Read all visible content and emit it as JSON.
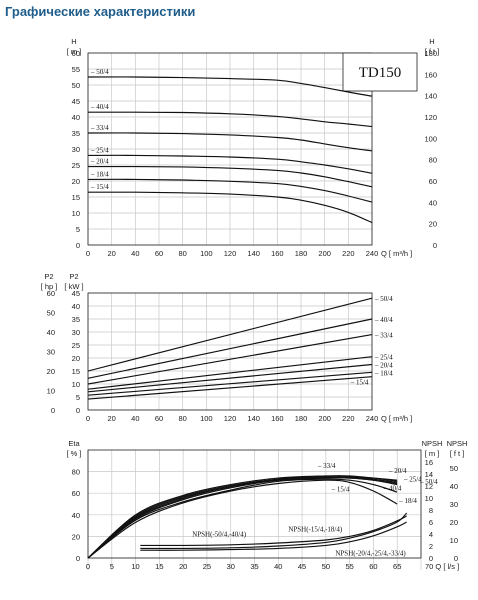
{
  "page_title": "Графические характеристики",
  "model": "TD150",
  "chart_data": [
    {
      "id": "head",
      "type": "line",
      "title": "",
      "xlabel": "Q [ m³/h ]",
      "ylabel_left": "H [ m ]",
      "ylabel_right": "H [ f t ]",
      "xlim": [
        0,
        240
      ],
      "ylim": [
        0,
        60
      ],
      "ylim_right": [
        0,
        180
      ],
      "x_ticks": [
        "0",
        "20",
        "40",
        "60",
        "80",
        "100",
        "120",
        "140",
        "160",
        "180",
        "200",
        "220",
        "240"
      ],
      "y_ticks": [
        "0",
        "5",
        "10",
        "15",
        "20",
        "25",
        "30",
        "35",
        "40",
        "45",
        "50",
        "55",
        "60"
      ],
      "y_ticks_right": [
        "0",
        "20",
        "40",
        "60",
        "80",
        "100",
        "120",
        "140",
        "160",
        "180"
      ],
      "grid": true,
      "series": [
        {
          "name": "50/4",
          "x": [
            0,
            40,
            80,
            120,
            160,
            180,
            200,
            220,
            240
          ],
          "y": [
            52.5,
            52.5,
            52.3,
            52,
            51.5,
            50.5,
            49.2,
            47.8,
            46.5
          ]
        },
        {
          "name": "40/4",
          "x": [
            0,
            40,
            80,
            120,
            160,
            180,
            200,
            220,
            240
          ],
          "y": [
            41.5,
            41.5,
            41.4,
            41,
            40.2,
            39.4,
            38.5,
            37.8,
            37
          ]
        },
        {
          "name": "33/4",
          "x": [
            0,
            40,
            80,
            120,
            160,
            180,
            200,
            220,
            240
          ],
          "y": [
            35,
            35,
            34.8,
            34.4,
            33.6,
            32.8,
            31.6,
            30.4,
            29.4
          ]
        },
        {
          "name": "25/4",
          "x": [
            0,
            40,
            80,
            120,
            160,
            180,
            200,
            220,
            240
          ],
          "y": [
            28,
            28,
            27.8,
            27.5,
            26.8,
            26,
            25,
            23.8,
            22.4
          ]
        },
        {
          "name": "20/4",
          "x": [
            0,
            40,
            80,
            120,
            160,
            180,
            200,
            220,
            240
          ],
          "y": [
            24.5,
            24.5,
            24.4,
            24,
            23.3,
            22.5,
            21.3,
            19.8,
            18.2
          ]
        },
        {
          "name": "18/4",
          "x": [
            0,
            40,
            80,
            120,
            160,
            180,
            200,
            220,
            240
          ],
          "y": [
            20.5,
            20.5,
            20.3,
            19.9,
            19.2,
            18.3,
            17,
            15.3,
            13.4
          ]
        },
        {
          "name": "15/4",
          "x": [
            0,
            40,
            80,
            120,
            160,
            180,
            200,
            220,
            240
          ],
          "y": [
            16.5,
            16.5,
            16.3,
            15.9,
            15,
            14,
            12.4,
            10.2,
            7
          ]
        }
      ]
    },
    {
      "id": "power",
      "type": "line",
      "title": "",
      "xlabel": "Q [ m³/h ]",
      "ylabel_left": "P2 [ kW ]",
      "ylabel_left2": "P2 [ hp ]",
      "xlim": [
        0,
        240
      ],
      "ylim": [
        0,
        45
      ],
      "ylim_hp": [
        0,
        60
      ],
      "x_ticks": [
        "0",
        "20",
        "40",
        "60",
        "80",
        "100",
        "120",
        "140",
        "160",
        "180",
        "200",
        "220",
        "240"
      ],
      "y_ticks": [
        "0",
        "5",
        "10",
        "15",
        "20",
        "25",
        "30",
        "35",
        "40",
        "45"
      ],
      "y_ticks_hp": [
        "0",
        "10",
        "20",
        "30",
        "40",
        "50",
        "60"
      ],
      "grid": true,
      "series": [
        {
          "name": "50/4",
          "x": [
            0,
            240
          ],
          "y": [
            15,
            43
          ]
        },
        {
          "name": "40/4",
          "x": [
            0,
            240
          ],
          "y": [
            12.2,
            35
          ]
        },
        {
          "name": "33/4",
          "x": [
            0,
            240
          ],
          "y": [
            10,
            29
          ]
        },
        {
          "name": "25/4",
          "x": [
            0,
            240
          ],
          "y": [
            8,
            20.5
          ]
        },
        {
          "name": "20/4",
          "x": [
            0,
            240
          ],
          "y": [
            7,
            17.5
          ]
        },
        {
          "name": "18/4",
          "x": [
            0,
            240
          ],
          "y": [
            5.7,
            14.5
          ]
        },
        {
          "name": "15/4",
          "x": [
            0,
            240
          ],
          "y": [
            4.2,
            12.8
          ]
        }
      ]
    },
    {
      "id": "efficiency",
      "type": "line",
      "title": "",
      "xlabel": "Q [ l/s ]",
      "ylabel_left": "Eta [ % ]",
      "ylabel_right": "NPSH [ m ]",
      "ylabel_right2": "NPSH [ f t ]",
      "xlim": [
        0,
        70
      ],
      "ylim": [
        0,
        100
      ],
      "ylim_npsh_m": [
        0,
        18
      ],
      "ylim_npsh_ft": [
        0,
        60
      ],
      "x_ticks": [
        "0",
        "5",
        "10",
        "15",
        "20",
        "25",
        "30",
        "35",
        "40",
        "45",
        "50",
        "55",
        "60",
        "65",
        "70"
      ],
      "y_ticks": [
        "0",
        "20",
        "40",
        "60",
        "80"
      ],
      "y_ticks_npsh_m": [
        "0",
        "2",
        "4",
        "6",
        "8",
        "10",
        "12",
        "14",
        "16"
      ],
      "y_ticks_npsh_ft": [
        "0",
        "10",
        "20",
        "30",
        "40",
        "50"
      ],
      "grid": true,
      "eta_series": [
        {
          "name": "15/4",
          "x": [
            0,
            10,
            20,
            30,
            40,
            50,
            55,
            60,
            65
          ],
          "y": [
            0,
            33,
            51,
            62,
            69,
            72,
            70,
            62,
            50
          ]
        },
        {
          "name": "18/4",
          "x": [
            0,
            10,
            20,
            30,
            40,
            50,
            55,
            60,
            65
          ],
          "y": [
            0,
            35,
            52,
            63,
            71,
            73,
            72,
            68,
            61
          ]
        },
        {
          "name": "20/4",
          "x": [
            0,
            10,
            20,
            30,
            40,
            50,
            55,
            60,
            65
          ],
          "y": [
            0,
            36,
            54,
            65,
            72,
            74,
            74,
            72,
            68
          ]
        },
        {
          "name": "25/4",
          "x": [
            0,
            10,
            20,
            30,
            40,
            50,
            55,
            60,
            65
          ],
          "y": [
            0,
            38,
            56,
            66,
            73,
            75,
            75,
            73,
            70
          ]
        },
        {
          "name": "33/4",
          "x": [
            0,
            10,
            20,
            30,
            40,
            50,
            55,
            60,
            65
          ],
          "y": [
            0,
            40,
            58,
            68,
            74,
            76,
            76,
            74,
            71
          ]
        },
        {
          "name": "40/4",
          "x": [
            0,
            10,
            20,
            30,
            40,
            50,
            55,
            60,
            65
          ],
          "y": [
            0,
            37,
            55,
            66,
            72,
            74,
            74,
            72,
            69
          ]
        },
        {
          "name": "50/4",
          "x": [
            0,
            10,
            20,
            30,
            40,
            50,
            55,
            60,
            65
          ],
          "y": [
            0,
            39,
            57,
            67,
            73,
            75,
            75,
            74,
            72
          ]
        }
      ],
      "npsh_series": [
        {
          "name": "NPSH(-50/4,-40/4)",
          "x": [
            11,
            20,
            30,
            40,
            50,
            55,
            60,
            65,
            67
          ],
          "y": [
            2.1,
            2.1,
            2.2,
            2.5,
            3.0,
            3.6,
            4.6,
            6.2,
            7.0
          ]
        },
        {
          "name": "NPSH(-15/4,-18/4)",
          "x": [
            11,
            20,
            30,
            40,
            50,
            55,
            60,
            65,
            67
          ],
          "y": [
            1.6,
            1.6,
            1.7,
            2.0,
            2.6,
            3.3,
            4.4,
            6.0,
            7.5
          ]
        },
        {
          "name": "NPSH(-20/4,-25/4,-33/4)",
          "x": [
            11,
            20,
            30,
            40,
            50,
            55,
            60,
            65,
            67
          ],
          "y": [
            1.3,
            1.3,
            1.4,
            1.6,
            2.1,
            2.7,
            3.7,
            5.2,
            6.0
          ]
        }
      ]
    }
  ]
}
